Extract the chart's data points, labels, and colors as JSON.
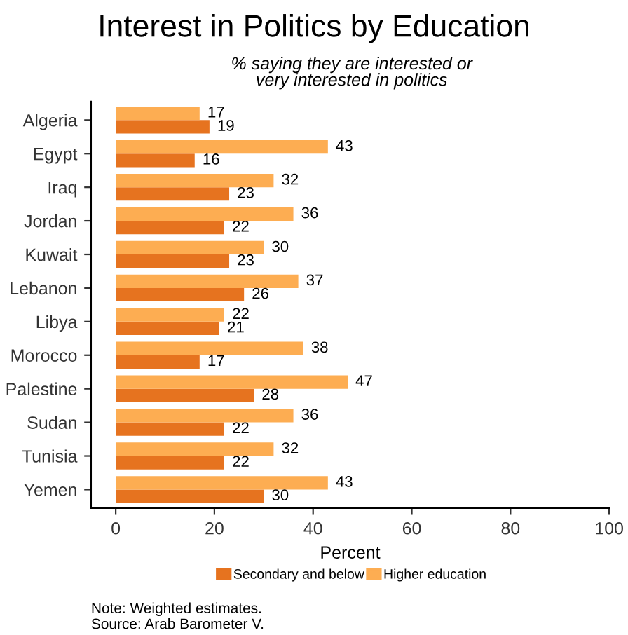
{
  "chart_data": {
    "type": "bar",
    "orientation": "horizontal",
    "title": "Interest in Politics by Education",
    "subtitle": "% saying they are interested or\nvery interested in politics",
    "xlabel": "Percent",
    "categories": [
      "Algeria",
      "Egypt",
      "Iraq",
      "Jordan",
      "Kuwait",
      "Lebanon",
      "Libya",
      "Morocco",
      "Palestine",
      "Sudan",
      "Tunisia",
      "Yemen"
    ],
    "series": [
      {
        "name": "Secondary and below",
        "color": "#e6731f",
        "values": [
          19,
          16,
          23,
          22,
          23,
          26,
          21,
          17,
          28,
          22,
          22,
          30
        ]
      },
      {
        "name": "Higher education",
        "color": "#fdad52",
        "values": [
          17,
          43,
          32,
          36,
          30,
          37,
          22,
          38,
          47,
          36,
          32,
          43
        ]
      }
    ],
    "xlim": [
      -5,
      100
    ],
    "xticks": [
      0,
      20,
      40,
      60,
      80,
      100
    ],
    "data_labels": true,
    "grid": false,
    "legend": "bottom",
    "annotations": [
      "Note: Weighted estimates.\nSource: Arab Barometer V."
    ]
  }
}
